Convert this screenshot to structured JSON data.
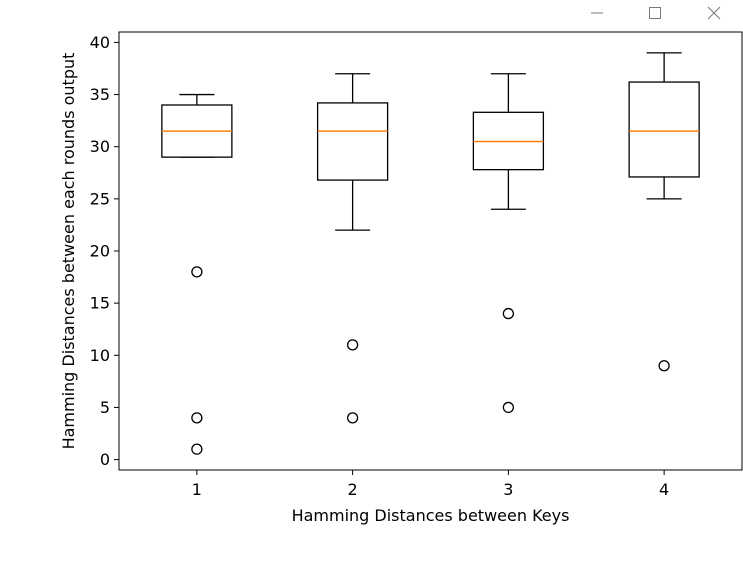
{
  "window": {
    "controls": [
      {
        "name": "minimize-icon"
      },
      {
        "name": "maximize-icon"
      },
      {
        "name": "close-icon"
      }
    ]
  },
  "chart_data": {
    "type": "box",
    "xlabel": "Hamming Distances between Keys",
    "ylabel": "Hamming Distances between each rounds output",
    "ylim": [
      -1,
      41
    ],
    "xlim": [
      0.5,
      4.5
    ],
    "yticks": [
      0,
      5,
      10,
      15,
      20,
      25,
      30,
      35,
      40
    ],
    "grid": false,
    "median_color": "#ff7f0e",
    "box_color": "#000000",
    "boxes": [
      {
        "category": "1",
        "whisker_low": 29,
        "q1": 29,
        "median": 31.5,
        "q3": 34,
        "whisker_high": 35,
        "outliers": [
          18,
          4,
          1
        ]
      },
      {
        "category": "2",
        "whisker_low": 22,
        "q1": 26.8,
        "median": 31.5,
        "q3": 34.2,
        "whisker_high": 37,
        "outliers": [
          11,
          4
        ]
      },
      {
        "category": "3",
        "whisker_low": 24,
        "q1": 27.8,
        "median": 30.5,
        "q3": 33.3,
        "whisker_high": 37,
        "outliers": [
          14,
          5
        ]
      },
      {
        "category": "4",
        "whisker_low": 25,
        "q1": 27.1,
        "median": 31.5,
        "q3": 36.2,
        "whisker_high": 39,
        "outliers": [
          9
        ]
      }
    ]
  }
}
